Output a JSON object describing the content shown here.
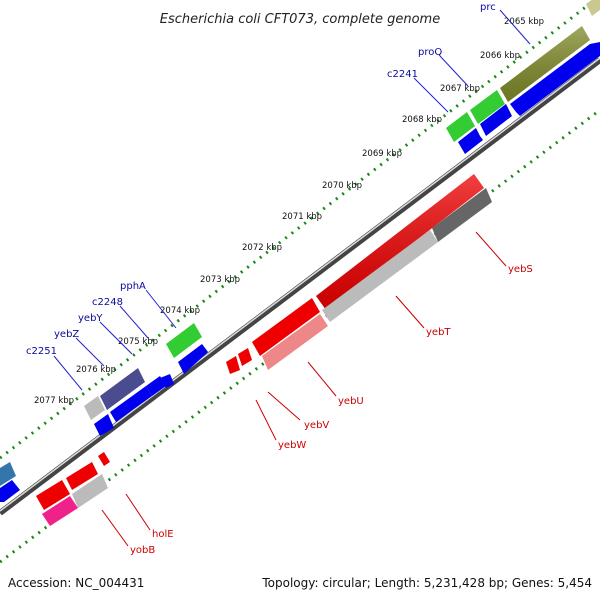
{
  "title": "Escherichia coli CFT073, complete genome",
  "footer": {
    "accession": "Accession: NC_004431",
    "info": "Topology: circular; Length: 5,231,428 bp; Genes: 5,454"
  },
  "kbp_labels": [
    "2065 kbp",
    "2066 kbp",
    "2067 kbp",
    "2068 kbp",
    "2069 kbp",
    "2070 kbp",
    "2071 kbp",
    "2072 kbp",
    "2073 kbp",
    "2074 kbp",
    "2075 kbp",
    "2076 kbp",
    "2077 kbp"
  ],
  "genes_top": [
    "prc",
    "proQ",
    "c2241",
    "pphA",
    "c2248",
    "yebY",
    "yebZ",
    "c2251"
  ],
  "genes_bottom": [
    "yebS",
    "yebT",
    "yebU",
    "yebV",
    "yebW",
    "holE",
    "yobB"
  ],
  "colors": {
    "forward": "#0000ee",
    "reverse": "#ee0000",
    "rna_green": "#33cc33",
    "olive": "#808b2a",
    "purple": "#4b4b8f",
    "grey": "#bbbbbb",
    "dark_grey": "#666666",
    "pink": "#ee88aa",
    "magenta": "#ee2288",
    "tick_green": "#1a8a1a",
    "label_blue": "#0a0a9a",
    "label_red": "#cc0000"
  }
}
